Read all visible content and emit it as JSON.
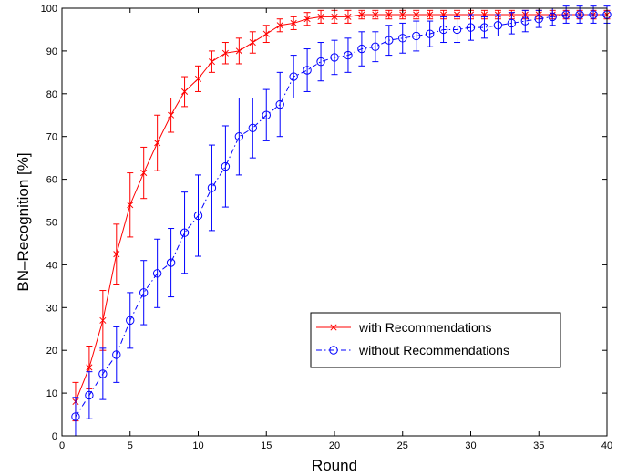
{
  "chart_data": {
    "type": "line",
    "title": "",
    "xlabel": "Round",
    "ylabel": "BN–Recognition [%]",
    "xlim": [
      0,
      40
    ],
    "ylim": [
      0,
      100
    ],
    "x_ticks": [
      0,
      5,
      10,
      15,
      20,
      25,
      30,
      35,
      40
    ],
    "y_ticks": [
      0,
      10,
      20,
      30,
      40,
      50,
      60,
      70,
      80,
      90,
      100
    ],
    "grid": false,
    "legend": "center-right",
    "x": [
      1,
      2,
      3,
      4,
      5,
      6,
      7,
      8,
      9,
      10,
      11,
      12,
      13,
      14,
      15,
      16,
      17,
      18,
      19,
      20,
      21,
      22,
      23,
      24,
      25,
      26,
      27,
      28,
      29,
      30,
      31,
      32,
      33,
      34,
      35,
      36,
      37,
      38,
      39,
      40
    ],
    "series": [
      {
        "name": "with Recommendations",
        "color": "#ff0000",
        "marker": "x",
        "line_style": "solid",
        "values": [
          8,
          16,
          27,
          42.5,
          54,
          61.5,
          68.5,
          75,
          80.5,
          83.5,
          87.5,
          89.5,
          90,
          92,
          94,
          96,
          96.5,
          97.5,
          98,
          98,
          98,
          98.5,
          98.5,
          98.5,
          98.5,
          98.5,
          98.5,
          98.5,
          98.5,
          98.5,
          98.5,
          98.5,
          98.5,
          98.5,
          98.5,
          98.5,
          98.5,
          98.5,
          98.5,
          98.5
        ],
        "errors": [
          4.5,
          5,
          7,
          7,
          7.5,
          6,
          6.5,
          4,
          3.5,
          3,
          2.5,
          2.5,
          3,
          2.5,
          2,
          1.5,
          1.5,
          1.5,
          1.5,
          1.5,
          1.5,
          1,
          1,
          1,
          1,
          1,
          1,
          1,
          1,
          1,
          1,
          1,
          1,
          1,
          1,
          1,
          1,
          1,
          1,
          1
        ]
      },
      {
        "name": "without Recommendations",
        "color": "#0000ff",
        "marker": "o",
        "line_style": "dash-dot",
        "values": [
          4.5,
          9.5,
          14.5,
          19,
          27,
          33.5,
          38,
          40.5,
          47.5,
          51.5,
          58,
          63,
          70,
          72,
          75,
          77.5,
          84,
          85.5,
          87.5,
          88.5,
          89,
          90.5,
          91,
          92.5,
          93,
          93.5,
          94,
          95,
          95,
          95.5,
          95.5,
          96,
          96.5,
          97,
          97.5,
          98,
          98.5,
          98.5,
          98.5,
          98.5
        ],
        "errors": [
          4.5,
          5.5,
          6,
          6.5,
          6.5,
          7.5,
          8,
          8,
          9.5,
          9.5,
          10,
          9.5,
          9,
          7,
          6,
          7.5,
          5,
          5,
          4.5,
          4,
          4,
          4,
          3.5,
          3.5,
          3.5,
          3.5,
          3,
          3,
          3,
          3,
          2.5,
          2.5,
          2.5,
          2.5,
          2,
          2,
          2,
          2,
          2,
          2
        ]
      }
    ]
  }
}
